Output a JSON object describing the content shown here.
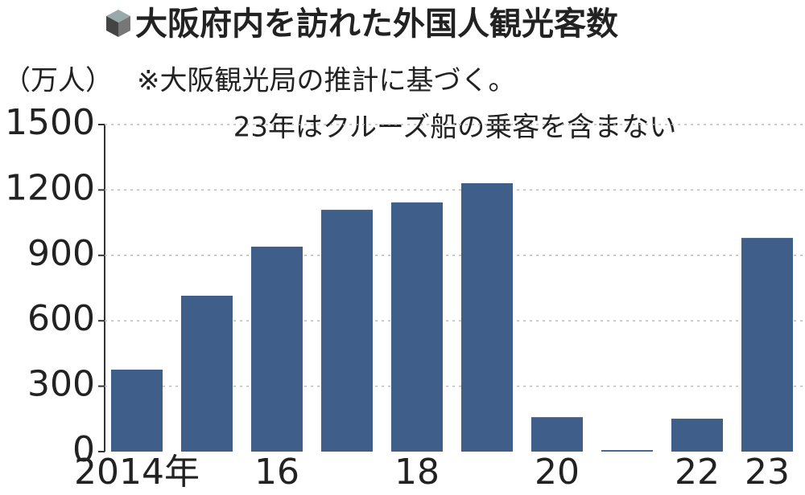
{
  "chart_data": {
    "type": "bar",
    "title": "大阪府内を訪れた外国人観光客数",
    "y_label": "（万人）",
    "annotations": [
      "※大阪観光局の推計に基づく。",
      "23年はクルーズ船の乗客を含まない"
    ],
    "categories": [
      "2014年",
      null,
      "16",
      null,
      "18",
      null,
      "20",
      null,
      "22",
      "23"
    ],
    "values": [
      376,
      715,
      940,
      1109,
      1143,
      1231,
      158,
      7,
      151,
      980
    ],
    "color": "#3f5f8a",
    "ylim": [
      0,
      1500
    ],
    "yticks": [
      0,
      300,
      600,
      900,
      1200,
      1500
    ],
    "grid": true
  }
}
